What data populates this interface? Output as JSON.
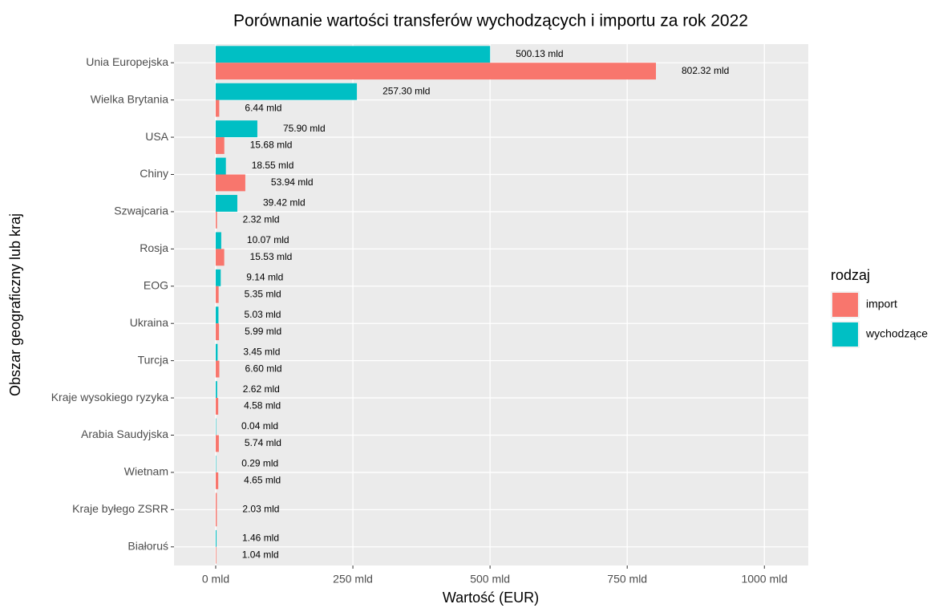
{
  "chart_data": {
    "type": "hbar",
    "title": "Porównanie wartości transferów wychodzących i importu za rok 2022",
    "xlabel": "Wartość (EUR)",
    "ylabel": "Obszar geograficzny lub kraj",
    "categories": [
      "Unia Europejska",
      "Wielka Brytania",
      "USA",
      "Chiny",
      "Szwajcaria",
      "Rosja",
      "EOG",
      "Ukraina",
      "Turcja",
      "Kraje wysokiego ryzyka",
      "Arabia Saudyjska",
      "Wietnam",
      "Kraje byłego ZSRR",
      "Białoruś"
    ],
    "series": [
      {
        "name": "import",
        "color": "#F8766D",
        "values": [
          802.32,
          6.44,
          15.68,
          53.94,
          2.32,
          15.53,
          5.35,
          5.99,
          6.6,
          4.58,
          5.74,
          4.65,
          2.03,
          1.04
        ],
        "value_labels": [
          "802.32 mld",
          "6.44 mld",
          "15.68 mld",
          "53.94 mld",
          "2.32 mld",
          "15.53 mld",
          "5.35 mld",
          "5.99 mld",
          "6.60 mld",
          "4.58 mld",
          "5.74 mld",
          "4.65 mld",
          "2.03 mld",
          "1.04 mld"
        ]
      },
      {
        "name": "wychodzące",
        "color": "#00BFC4",
        "values": [
          500.13,
          257.3,
          75.9,
          18.55,
          39.42,
          10.07,
          9.14,
          5.03,
          3.45,
          2.62,
          0.04,
          0.29,
          null,
          1.46
        ],
        "value_labels": [
          "500.13 mld",
          "257.30 mld",
          "75.90 mld",
          "18.55 mld",
          "39.42 mld",
          "10.07 mld",
          "9.14 mld",
          "5.03 mld",
          "3.45 mld",
          "2.62 mld",
          "0.04 mld",
          "0.29 mld",
          null,
          "1.46 mld"
        ]
      }
    ],
    "legend_title": "rodzaj",
    "legend": "right",
    "xlim": [
      -76,
      1080
    ],
    "xticks": [
      {
        "value": 0,
        "label": "0 mld"
      },
      {
        "value": 250,
        "label": "250 mld"
      },
      {
        "value": 500,
        "label": "500 mld"
      },
      {
        "value": 750,
        "label": "750 mld"
      },
      {
        "value": 1000,
        "label": "1000 mld"
      }
    ],
    "grid": true
  }
}
